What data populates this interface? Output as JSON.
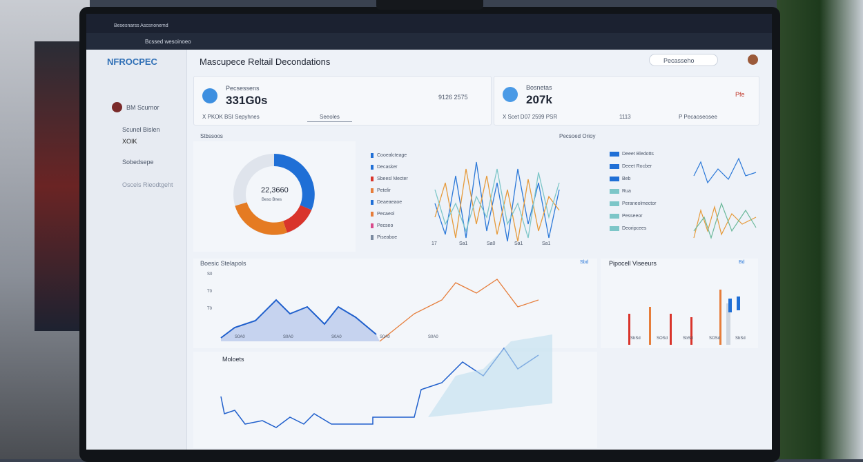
{
  "browser": {
    "tab": "Besesnarss Ascsnonemd",
    "address": "Bcssed wesoinoeo"
  },
  "header": {
    "logo": "NFROCPEC",
    "title": "Mascupece Reltail Decondations",
    "search": "Pecasseho"
  },
  "sidebar": {
    "user": "BM Scurnor",
    "items": [
      "Scunel Bislen",
      "XOIK",
      "Sobedsepe",
      "Oscels Rieodtgeht"
    ]
  },
  "cards": [
    {
      "label": "Pecsessens",
      "value": "331G0s",
      "side": "9126 2575",
      "footer": "X PKOK BSI Sepyhnes",
      "tab": "Seeoles"
    },
    {
      "label": "Bosnetas",
      "value": "207k",
      "side": "Pfe",
      "footer": "X Scet D07 2599 PSR",
      "mid": "1113",
      "tab": "P Pecaoseosee"
    }
  ],
  "sections": {
    "left": "Stbssoos",
    "right": "Pecsoed Orioy"
  },
  "donut": {
    "center": "22,3660",
    "sub": "Beso Bnes"
  },
  "legend": [
    "Cooealcteage",
    "Decasker",
    "Sbeesl Mecter",
    "Petelir",
    "Deaeaeaoe",
    "Pecaeol",
    "Pecseo",
    "Piseaboe"
  ],
  "line_axis": [
    "17",
    "Sa1",
    "Sa0",
    "Sa1",
    "Sa1"
  ],
  "legend2": [
    "Deeet Bledotts",
    "Deeet Rocber",
    "Beb",
    "Rua",
    "Peraneolmector",
    "Pesseeor",
    "Deoripcees"
  ],
  "area": {
    "title": "Boesic Stelapols",
    "yaxis": [
      "S0",
      "T0",
      "T0"
    ],
    "xaxis": [
      "S0A0",
      "S0A0",
      "S0A0",
      "S0A0",
      "S0A0"
    ],
    "tag": "Sbd"
  },
  "bars": {
    "title": "Pipocell Viseeurs",
    "tag": "Bd",
    "xaxis": [
      "SbSd",
      "SOSd",
      "SbSd",
      "SOSd",
      "SbSd"
    ]
  },
  "bottom": {
    "title": "Moloets"
  }
}
